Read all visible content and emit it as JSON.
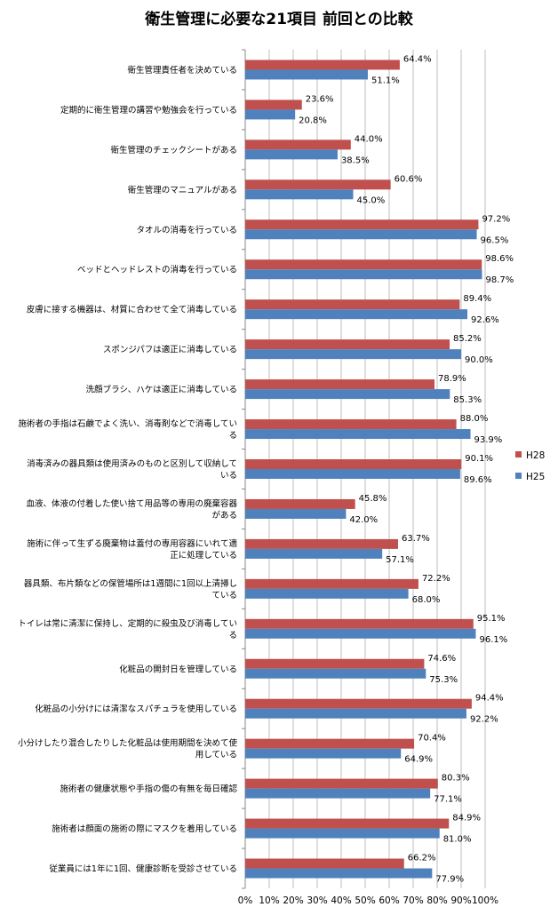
{
  "chart_data": {
    "type": "bar",
    "orientation": "horizontal",
    "title": "衛生管理に必要な21項目  前回との比較",
    "categories": [
      "衛生管理責任者を決めている",
      "定期的に衛生管理の講習や勉強会を行っている",
      "衛生管理のチェックシートがある",
      "衛生管理のマニュアルがある",
      "タオルの消毒を行っている",
      "ベッドとヘッドレストの消毒を行っている",
      "皮膚に接する機器は、材質に合わせて全て消毒している",
      "スポンジパフは適正に消毒している",
      "洗顔ブラシ、ハケは適正に消毒している",
      "施術者の手指は石鹸でよく洗い、消毒剤などで消毒している",
      "消毒済みの器具類は使用済みのものと区別して収納している",
      "血液、体液の付着した使い捨て用品等の専用の廃棄容器がある",
      "施術に伴って生ずる廃棄物は蓋付の専用容器にいれて適正に処理している",
      "器具類、布片類などの保管場所は1週間に1回以上清掃している",
      "トイレは常に清潔に保持し、定期的に殺虫及び消毒している",
      "化粧品の開封日を管理している",
      "化粧品の小分けには清潔なスパチュラを使用している",
      "小分けしたり混合したりした化粧品は使用期間を決めて使用している",
      "施術者の健康状態や手指の傷の有無を毎日確認",
      "施術者は顔面の施術の際にマスクを着用している",
      "従業員には1年に1回、健康診断を受診させている"
    ],
    "category_lines": [
      [
        "衛生管理責任者を決めている"
      ],
      [
        "定期的に衛生管理の講習や勉強会を行っている"
      ],
      [
        "衛生管理のチェックシートがある"
      ],
      [
        "衛生管理のマニュアルがある"
      ],
      [
        "タオルの消毒を行っている"
      ],
      [
        "ベッドとヘッドレストの消毒を行っている"
      ],
      [
        "皮膚に接する機器は、材質に合わせて全て消毒している"
      ],
      [
        "スポンジパフは適正に消毒している"
      ],
      [
        "洗顔ブラシ、ハケは適正に消毒している"
      ],
      [
        "施術者の手指は石鹸でよく洗い、消毒剤などで消毒してい",
        "る"
      ],
      [
        "消毒済みの器具類は使用済みのものと区別して収納して",
        "いる"
      ],
      [
        "血液、体液の付着した使い捨て用品等の専用の廃棄容器",
        "がある"
      ],
      [
        "施術に伴って生ずる廃棄物は蓋付の専用容器にいれて適",
        "正に処理している"
      ],
      [
        "器具類、布片類などの保管場所は1週間に1回以上清掃し",
        "ている"
      ],
      [
        "トイレは常に清潔に保持し、定期的に殺虫及び消毒してい",
        "る"
      ],
      [
        "化粧品の開封日を管理している"
      ],
      [
        "化粧品の小分けには清潔なスパチュラを使用している"
      ],
      [
        "小分けしたり混合したりした化粧品は使用期間を決めて使",
        "用している"
      ],
      [
        "施術者の健康状態や手指の傷の有無を毎日確認"
      ],
      [
        "施術者は顔面の施術の際にマスクを着用している"
      ],
      [
        "従業員には1年に1回、健康診断を受診させている"
      ]
    ],
    "series": [
      {
        "name": "H28",
        "color": "#c0504d",
        "values": [
          64.4,
          23.6,
          44.0,
          60.6,
          97.2,
          98.6,
          89.4,
          85.2,
          78.9,
          88.0,
          90.1,
          45.8,
          63.7,
          72.2,
          95.1,
          74.6,
          94.4,
          70.4,
          80.3,
          84.9,
          66.2
        ],
        "labels": [
          "64.4%",
          "23.6%",
          "44.0%",
          "60.6%",
          "97.2%",
          "98.6%",
          "89.4%",
          "85.2%",
          "78.9%",
          "88.0%",
          "90.1%",
          "45.8%",
          "63.7%",
          "72.2%",
          "95.1%",
          "74.6%",
          "94.4%",
          "70.4%",
          "80.3%",
          "84.9%",
          "66.2%"
        ]
      },
      {
        "name": "H25",
        "color": "#4f81bd",
        "values": [
          51.1,
          20.8,
          38.5,
          45.0,
          96.5,
          98.7,
          92.6,
          90.0,
          85.3,
          93.9,
          89.6,
          42.0,
          57.1,
          68.0,
          96.1,
          75.3,
          92.2,
          64.9,
          77.1,
          81.0,
          77.9
        ],
        "labels": [
          "51.1%",
          "20.8%",
          "38.5%",
          "45.0%",
          "96.5%",
          "98.7%",
          "92.6%",
          "90.0%",
          "85.3%",
          "93.9%",
          "89.6%",
          "42.0%",
          "57.1%",
          "68.0%",
          "96.1%",
          "75.3%",
          "92.2%",
          "64.9%",
          "77.1%",
          "81.0%",
          "77.9%"
        ]
      }
    ],
    "xlim": [
      0,
      100
    ],
    "xticks": [
      0,
      10,
      20,
      30,
      40,
      50,
      60,
      70,
      80,
      90,
      100
    ],
    "xtick_labels": [
      "0%",
      "10%",
      "20%",
      "30%",
      "40%",
      "50%",
      "60%",
      "70%",
      "80%",
      "90%",
      "100%"
    ],
    "grid": "vertical",
    "legend": {
      "placement": "right",
      "entries": [
        "H28",
        "H25"
      ]
    }
  }
}
